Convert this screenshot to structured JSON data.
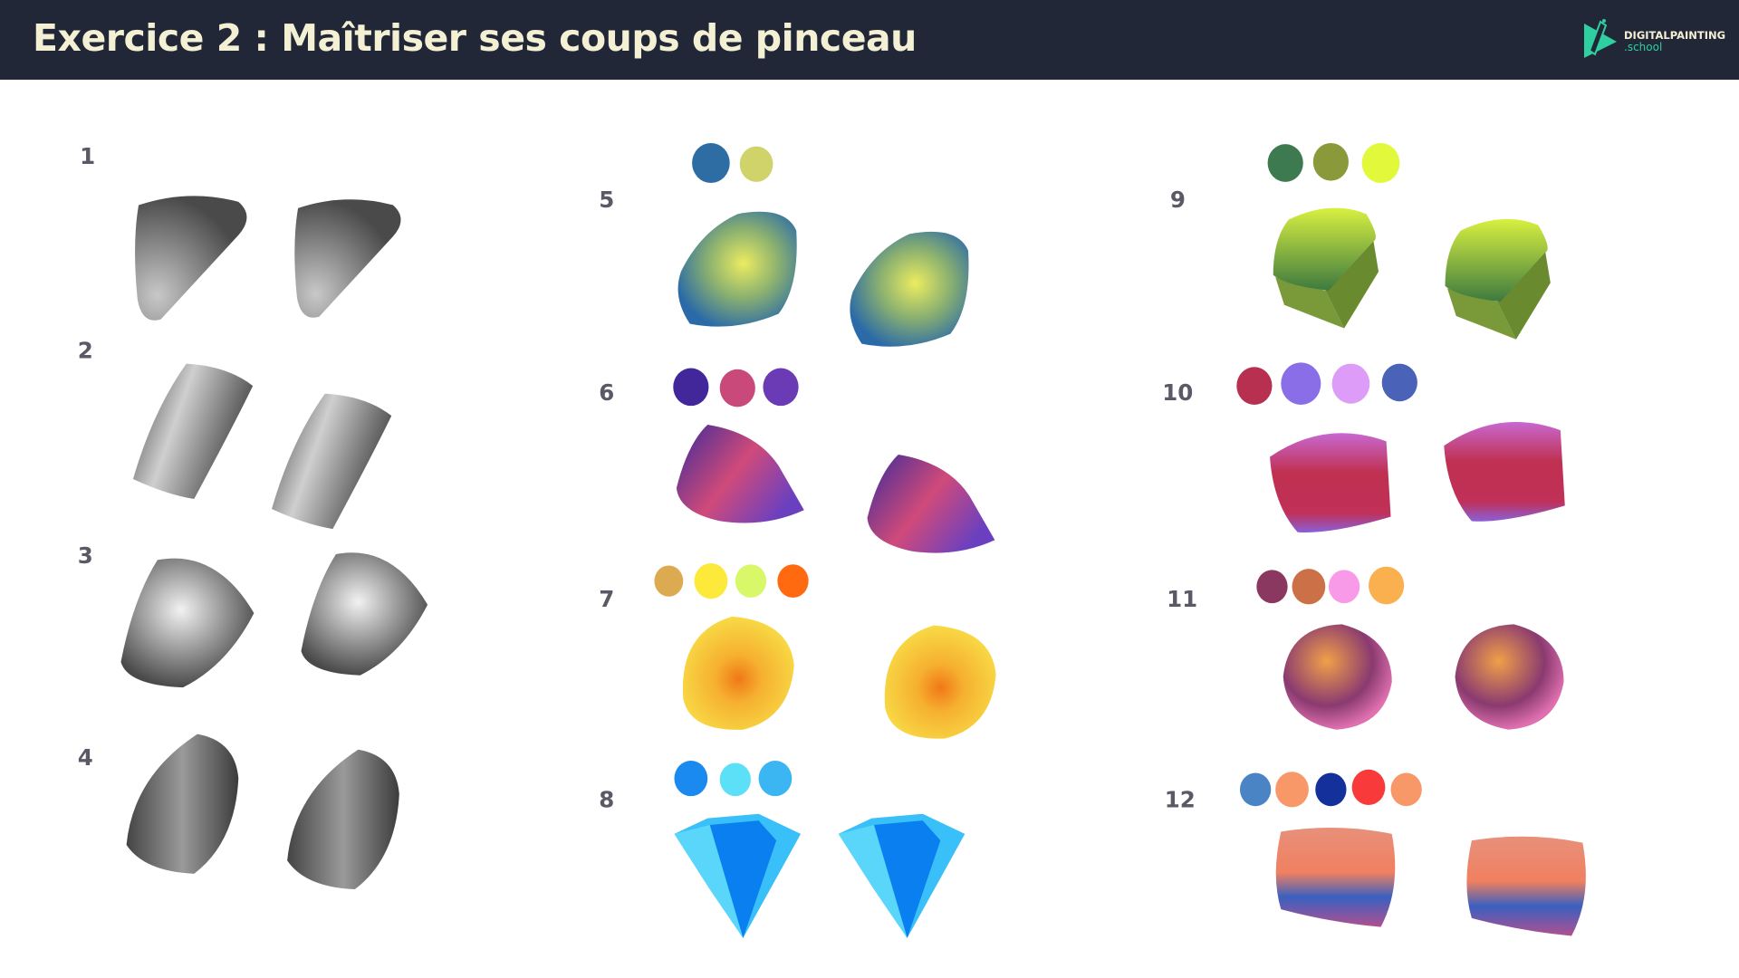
{
  "header": {
    "title": "Exercice 2 : Maîtriser ses coups de pinceau",
    "logo": {
      "line1": "DIGITALPAINTING",
      "line2": ".school",
      "accent": "#2ecfa0"
    },
    "background": "#212736"
  },
  "exercises": [
    {
      "number": "1",
      "palette": []
    },
    {
      "number": "2",
      "palette": []
    },
    {
      "number": "3",
      "palette": []
    },
    {
      "number": "4",
      "palette": []
    },
    {
      "number": "5",
      "palette": [
        "#2e6da4",
        "#cfd36a"
      ]
    },
    {
      "number": "6",
      "palette": [
        "#42279a",
        "#c94a7a",
        "#6a3bb5"
      ]
    },
    {
      "number": "7",
      "palette": [
        "#dcaa50",
        "#fde93a",
        "#d8f86a",
        "#ff6a10"
      ]
    },
    {
      "number": "8",
      "palette": [
        "#1a8af0",
        "#5ce0f8",
        "#3bb6f2"
      ]
    },
    {
      "number": "9",
      "palette": [
        "#3e7a50",
        "#8a9a3a",
        "#e2f83a"
      ]
    },
    {
      "number": "10",
      "palette": [
        "#b83050",
        "#8a6ee8",
        "#dc9cf8",
        "#4a62b8"
      ]
    },
    {
      "number": "11",
      "palette": [
        "#8a3860",
        "#cc7048",
        "#f89ae8",
        "#fbb050"
      ]
    },
    {
      "number": "12",
      "palette": [
        "#4a84c4",
        "#f89868",
        "#14309a",
        "#f83a3a",
        "#f89868"
      ]
    }
  ]
}
